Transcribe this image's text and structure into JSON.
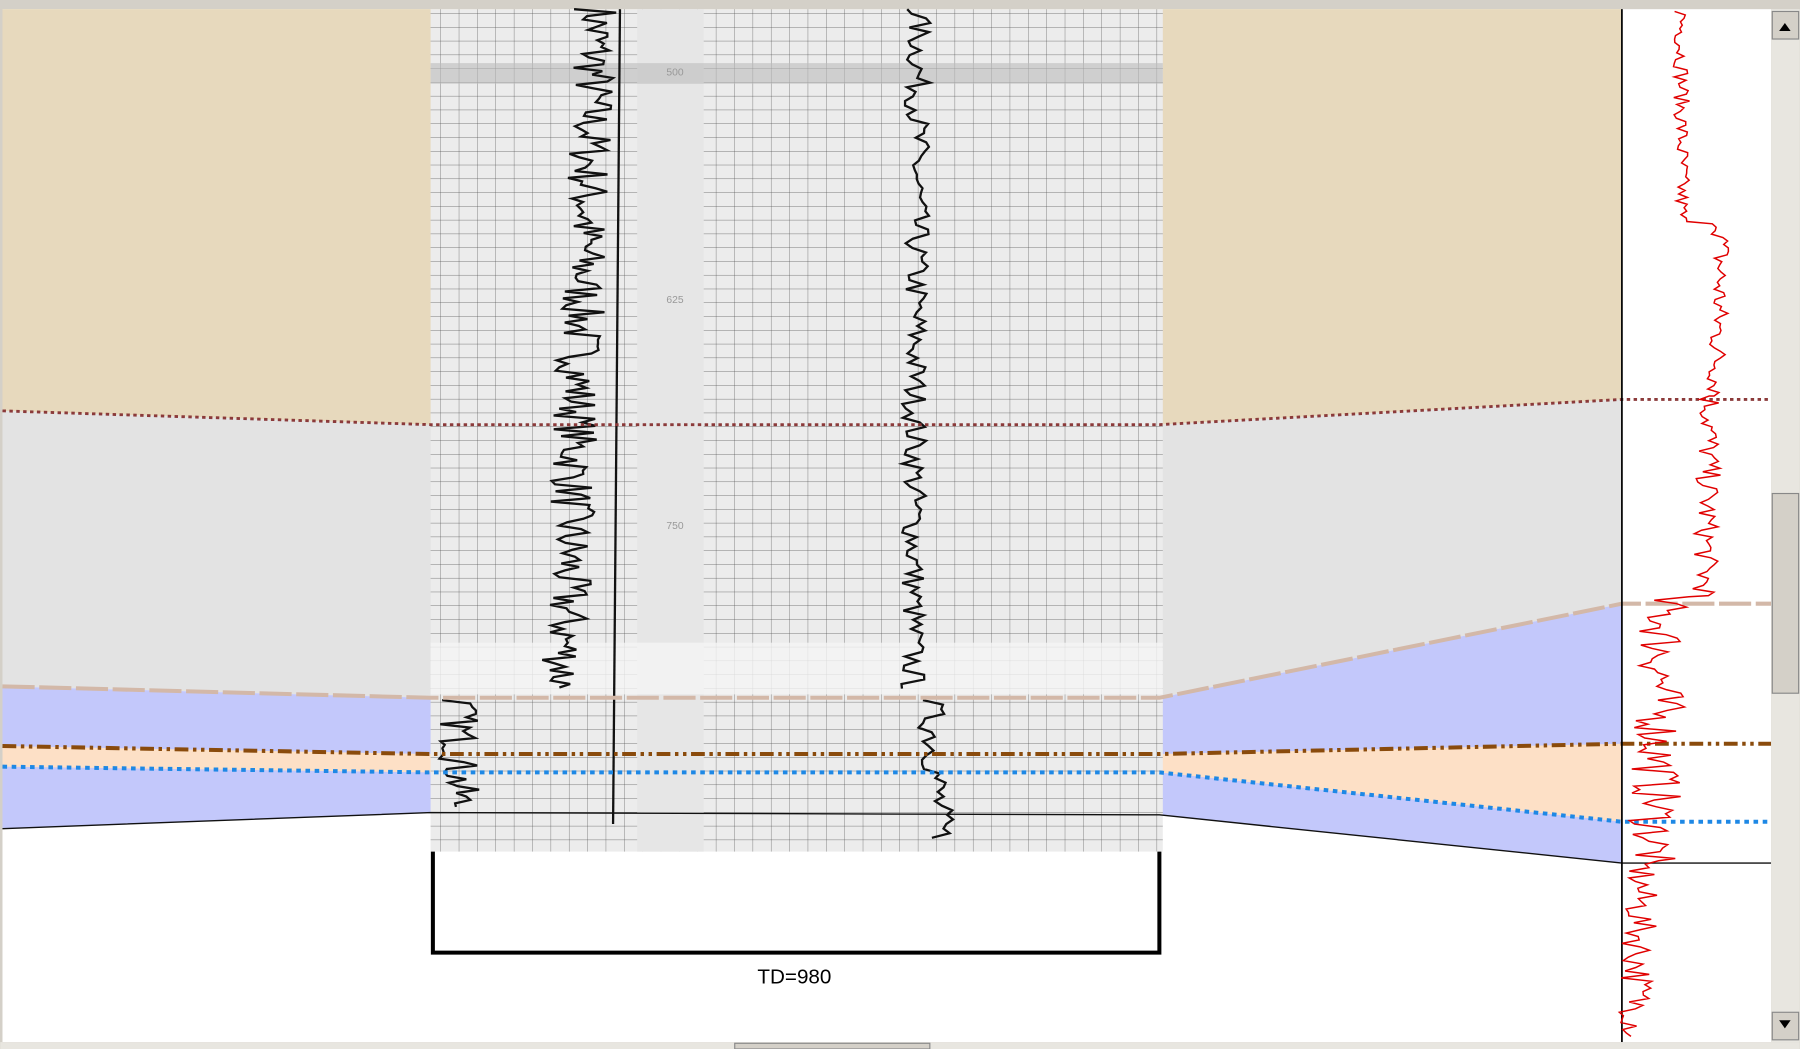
{
  "log": {
    "depth_labels": [
      "500",
      "625",
      "750"
    ]
  },
  "footer": {
    "total_depth": "TD=980"
  }
}
